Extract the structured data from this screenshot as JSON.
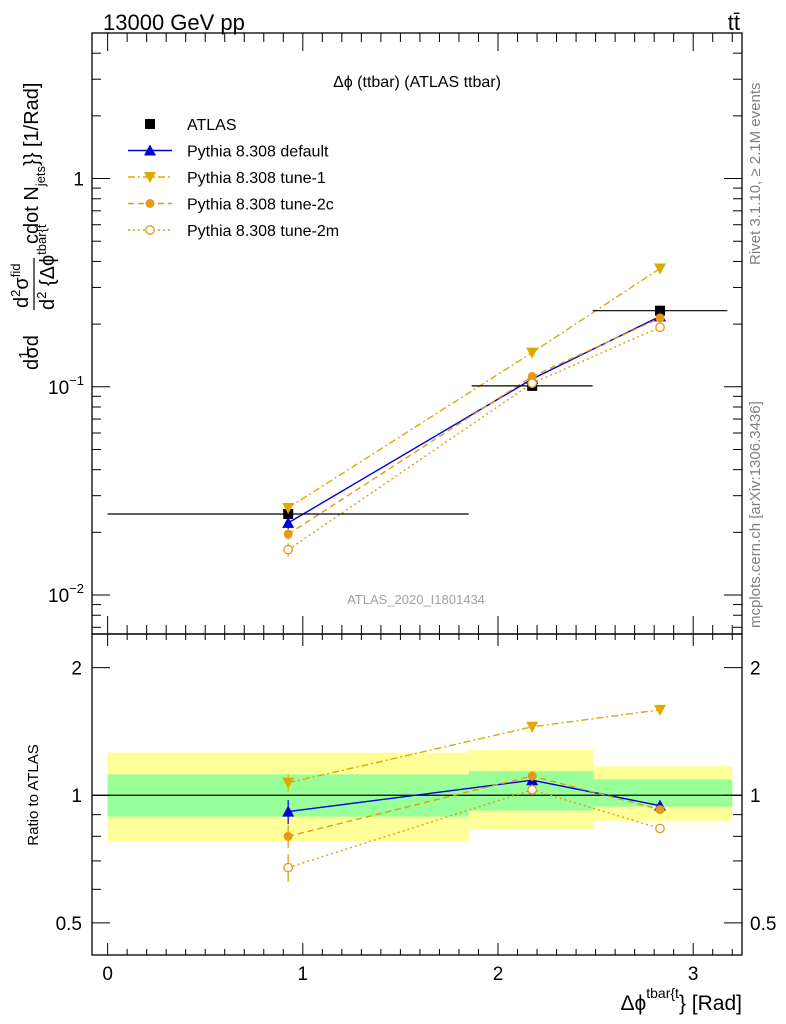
{
  "header": {
    "left": "13000 GeV pp",
    "right": "tt̄"
  },
  "side_labels": {
    "rivet": "Rivet 3.1.10, ≥ 2.1M events",
    "mcplots": "mcplots.cern.ch [arXiv:1306.3436]"
  },
  "chart_data": [
    {
      "panel": "main",
      "type": "scatter",
      "title": "Δϕ (ttbar) (ATLAS ttbar)",
      "watermark": "ATLAS_2020_I1801434",
      "ylabel": "d1/σ d d²σ^fid / d² {Δϕ^tbar{t}} cdot N_jets}} [1/Rad]",
      "yscale": "log",
      "ylim": [
        0.0065,
        5.0
      ],
      "xlim": [
        -0.08,
        3.25
      ],
      "yticks": [
        {
          "value": 0.01,
          "base": "10",
          "exp": "−2"
        },
        {
          "value": 0.1,
          "base": "10",
          "exp": "−1"
        },
        {
          "value": 1,
          "base": "1",
          "exp": ""
        }
      ],
      "legend_position": "top-left",
      "series": [
        {
          "name": "ATLAS",
          "color": "#000000",
          "marker": "square",
          "line": "none",
          "x": [
            0.925,
            2.175,
            2.83
          ],
          "y": [
            0.0245,
            0.101,
            0.232
          ],
          "xerr": [
            0.925,
            0.31,
            0.345
          ]
        },
        {
          "name": "Pythia 8.308 default",
          "color": "#0000dd",
          "marker": "triangle-up",
          "line": "solid",
          "x": [
            0.925,
            2.175,
            2.83
          ],
          "y": [
            0.0222,
            0.109,
            0.218
          ],
          "yerr": [
            0.0015,
            0.002,
            0.004
          ]
        },
        {
          "name": "Pythia 8.308 tune-1",
          "color": "#ddaa00",
          "marker": "triangle-down",
          "line": "dashdot",
          "x": [
            0.925,
            2.175,
            2.83
          ],
          "y": [
            0.0262,
            0.146,
            0.37
          ],
          "yerr": [
            0.0012,
            0.003,
            0.005
          ]
        },
        {
          "name": "Pythia 8.308 tune-2c",
          "color": "#e49b0f",
          "marker": "circle",
          "line": "dashed",
          "x": [
            0.925,
            2.175,
            2.83
          ],
          "y": [
            0.0196,
            0.112,
            0.214
          ],
          "yerr": [
            0.0012,
            0.002,
            0.004
          ]
        },
        {
          "name": "Pythia 8.308 tune-2m",
          "color": "#e49b0f",
          "marker": "circle-open",
          "line": "dotted",
          "x": [
            0.925,
            2.175,
            2.83
          ],
          "y": [
            0.0165,
            0.104,
            0.193
          ],
          "yerr": [
            0.0012,
            0.002,
            0.004
          ]
        }
      ]
    },
    {
      "panel": "ratio",
      "type": "scatter",
      "ylabel": "Ratio to ATLAS",
      "yscale": "log",
      "ylim": [
        0.42,
        2.4
      ],
      "yticks": [
        {
          "value": 0.5,
          "label": "0.5"
        },
        {
          "value": 1,
          "label": "1"
        },
        {
          "value": 2,
          "label": "2"
        }
      ],
      "xlabel": "Δϕ^tbar{t}} [Rad]",
      "xlabel_parts": {
        "base": "Δϕ",
        "sup": "tbar{t",
        "tail": "} [Rad]"
      },
      "xticks": [
        0,
        1,
        2,
        3
      ],
      "bands": [
        {
          "x": [
            0.0,
            1.85
          ],
          "inner": [
            0.89,
            1.12
          ],
          "outer": [
            0.78,
            1.26
          ]
        },
        {
          "x": [
            1.85,
            2.49
          ],
          "inner": [
            0.92,
            1.14
          ],
          "outer": [
            0.83,
            1.28
          ]
        },
        {
          "x": [
            2.49,
            3.2
          ],
          "inner": [
            0.94,
            1.09
          ],
          "outer": [
            0.87,
            1.17
          ]
        }
      ],
      "series": [
        {
          "name": "Pythia 8.308 default",
          "x": [
            0.925,
            2.175,
            2.83
          ],
          "y": [
            0.915,
            1.085,
            0.945
          ],
          "yerr": [
            0.06,
            0.03,
            0.02
          ]
        },
        {
          "name": "Pythia 8.308 tune-1",
          "x": [
            0.925,
            2.175,
            2.83
          ],
          "y": [
            1.07,
            1.45,
            1.59
          ],
          "yerr": [
            0.05,
            0.04,
            0.015
          ]
        },
        {
          "name": "Pythia 8.308 tune-2c",
          "x": [
            0.925,
            2.175,
            2.83
          ],
          "y": [
            0.8,
            1.11,
            0.925
          ],
          "yerr": [
            0.05,
            0.03,
            0.015
          ]
        },
        {
          "name": "Pythia 8.308 tune-2m",
          "x": [
            0.925,
            2.175,
            2.83
          ],
          "y": [
            0.675,
            1.03,
            0.835
          ],
          "yerr": [
            0.05,
            0.03,
            0.015
          ]
        }
      ]
    }
  ]
}
